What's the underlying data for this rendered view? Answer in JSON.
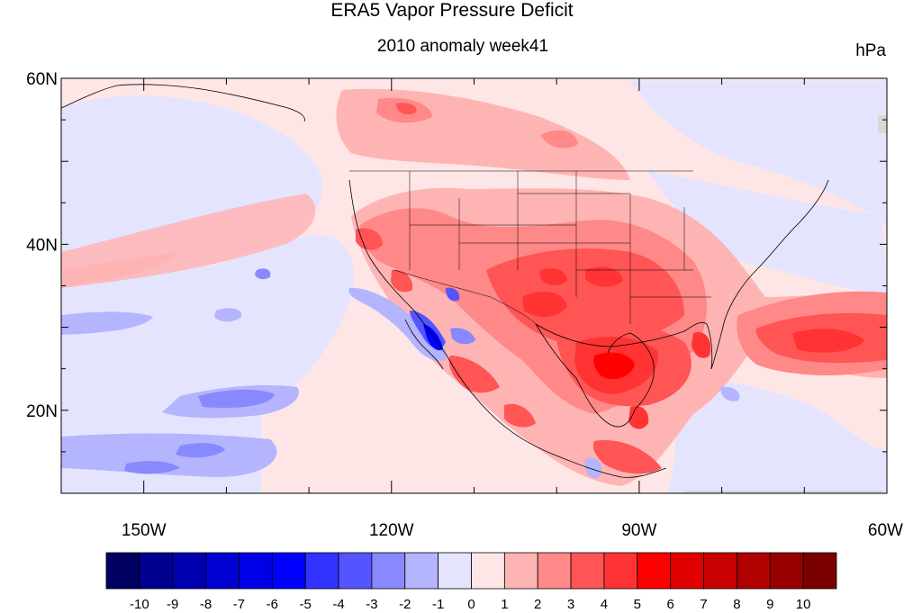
{
  "header": {
    "title": "ERA5 Vapor Pressure Deficit",
    "subtitle": "2010 anomaly week41",
    "units": "hPa"
  },
  "map": {
    "region": "North America and eastern Pacific",
    "lon_range": [
      -160,
      -60
    ],
    "lat_range": [
      10,
      60
    ],
    "lat_ticks": [
      {
        "value": 60,
        "label": "60N"
      },
      {
        "value": 40,
        "label": "40N"
      },
      {
        "value": 20,
        "label": "20N"
      }
    ],
    "lon_ticks": [
      {
        "value": -150,
        "label": "150W"
      },
      {
        "value": -120,
        "label": "120W"
      },
      {
        "value": -90,
        "label": "90W"
      },
      {
        "value": -60,
        "label": "60W"
      }
    ]
  },
  "colorbar": {
    "colors": [
      "#000060",
      "#000090",
      "#0000b0",
      "#0000d0",
      "#0000e8",
      "#0000ff",
      "#3333ff",
      "#5555ff",
      "#8888ff",
      "#b4b4ff",
      "#e4e4ff",
      "#ffe6e6",
      "#ffb4b4",
      "#ff8888",
      "#ff5555",
      "#ff3333",
      "#ff0000",
      "#e00000",
      "#c80000",
      "#b00000",
      "#980000",
      "#7a0000"
    ],
    "labels": [
      "-10",
      "-9",
      "-8",
      "-7",
      "-6",
      "-5",
      "-4",
      "-3",
      "-2",
      "-1",
      "0",
      "1",
      "2",
      "3",
      "4",
      "5",
      "6",
      "7",
      "8",
      "9",
      "10"
    ]
  }
}
